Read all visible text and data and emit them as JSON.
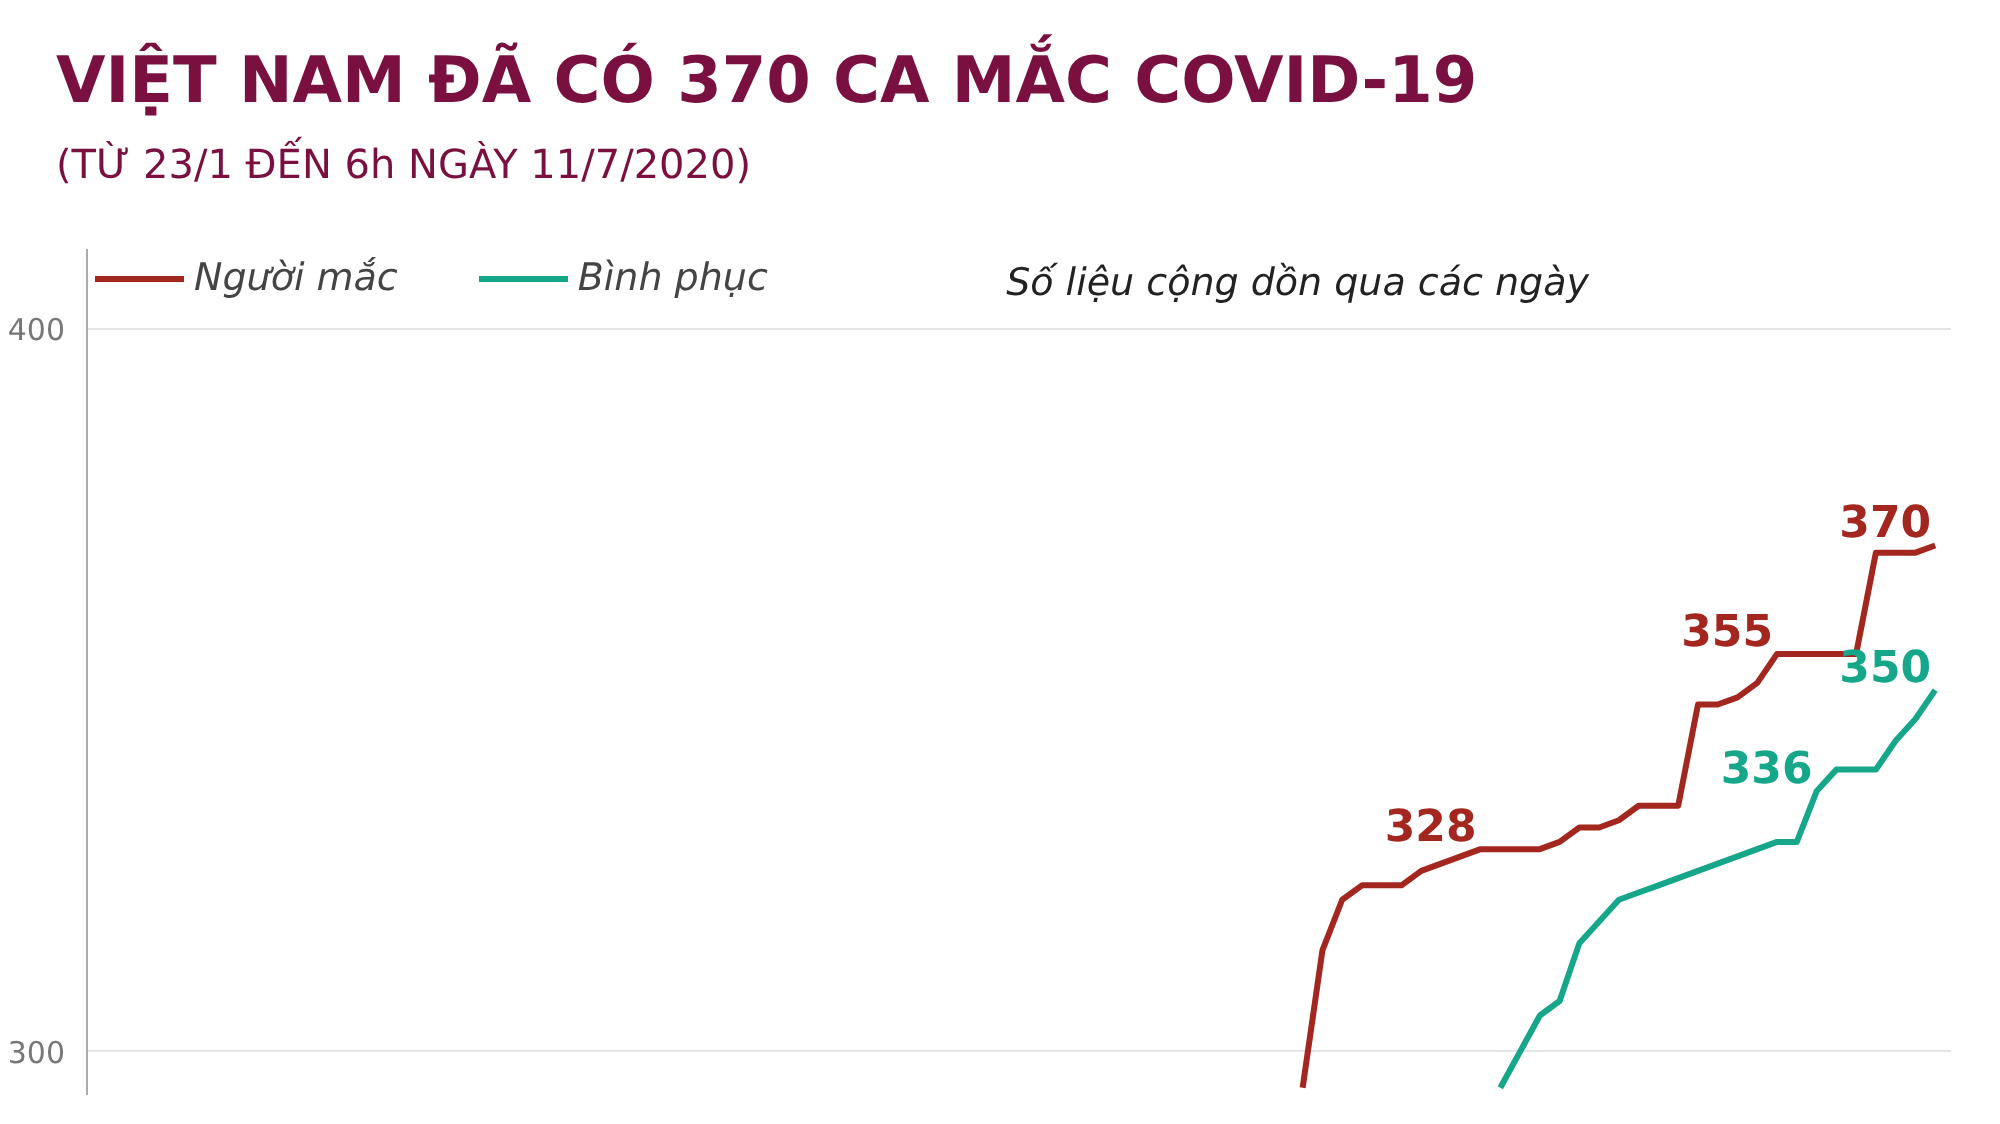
{
  "chart_data": {
    "type": "line",
    "title": "VIỆT NAM ĐÃ CÓ 370 CA MẮC COVID-19",
    "subtitle": "(TỪ 23/1 ĐẾN 6h NGÀY 11/7/2020)",
    "annotations": [
      "Số liệu cộng dồn qua các ngày"
    ],
    "categories": [
      null,
      null,
      null,
      null,
      null,
      null,
      null,
      null,
      null,
      null,
      null,
      null,
      null,
      null,
      null,
      null,
      null,
      null,
      null,
      null,
      null,
      null,
      null,
      null,
      null,
      null,
      null,
      null,
      null,
      null,
      null,
      null,
      null,
      null,
      null,
      null,
      null,
      null,
      null,
      null,
      null,
      null,
      null,
      null,
      null,
      null,
      null,
      null,
      null,
      null,
      null,
      null,
      null,
      null,
      null,
      null,
      null,
      null,
      null,
      null,
      null,
      null,
      null,
      null,
      null,
      null,
      null,
      null,
      null,
      null,
      null,
      null,
      null,
      null,
      null,
      null,
      null,
      null,
      null,
      null,
      null,
      null,
      null,
      null,
      null,
      null,
      null,
      null,
      null,
      null,
      null,
      null,
      null,
      null
    ],
    "series": [
      {
        "name": "Người mắc",
        "color": "#a3271f",
        "values": [
          null,
          null,
          null,
          null,
          null,
          null,
          null,
          null,
          null,
          null,
          null,
          null,
          null,
          null,
          null,
          null,
          null,
          null,
          null,
          null,
          null,
          null,
          null,
          null,
          null,
          null,
          null,
          null,
          null,
          null,
          null,
          null,
          null,
          null,
          null,
          null,
          null,
          null,
          null,
          null,
          null,
          null,
          null,
          null,
          null,
          null,
          null,
          null,
          null,
          null,
          null,
          null,
          null,
          null,
          null,
          null,
          null,
          null,
          null,
          null,
          null,
          295,
          314,
          321,
          323,
          323,
          323,
          325,
          326,
          327,
          328,
          328,
          328,
          328,
          329,
          331,
          331,
          332,
          334,
          334,
          334,
          348,
          348,
          349,
          351,
          355,
          355,
          355,
          355,
          355,
          369,
          369,
          369,
          370
        ],
        "value_labels": [
          null,
          null,
          null,
          null,
          null,
          null,
          null,
          null,
          null,
          null,
          null,
          null,
          null,
          null,
          null,
          null,
          null,
          null,
          null,
          null,
          null,
          null,
          null,
          null,
          null,
          null,
          null,
          null,
          null,
          null,
          null,
          null,
          null,
          null,
          null,
          null,
          null,
          null,
          null,
          null,
          null,
          null,
          null,
          null,
          null,
          null,
          null,
          null,
          null,
          null,
          null,
          null,
          null,
          null,
          null,
          null,
          null,
          null,
          null,
          null,
          null,
          null,
          null,
          null,
          null,
          null,
          null,
          null,
          null,
          null,
          "328",
          null,
          null,
          null,
          null,
          null,
          null,
          null,
          null,
          null,
          null,
          null,
          null,
          null,
          null,
          "355",
          null,
          null,
          null,
          null,
          null,
          null,
          null,
          "370"
        ]
      },
      {
        "name": "Bình phục",
        "color": "#16a68a",
        "values": [
          null,
          null,
          null,
          null,
          null,
          null,
          null,
          null,
          null,
          null,
          null,
          null,
          null,
          null,
          null,
          null,
          null,
          null,
          null,
          null,
          null,
          null,
          null,
          null,
          null,
          null,
          null,
          null,
          null,
          null,
          null,
          null,
          null,
          null,
          null,
          null,
          null,
          null,
          null,
          null,
          null,
          null,
          null,
          null,
          null,
          null,
          null,
          null,
          null,
          null,
          null,
          null,
          null,
          null,
          null,
          null,
          null,
          null,
          null,
          null,
          null,
          null,
          null,
          null,
          null,
          null,
          null,
          null,
          null,
          null,
          null,
          295,
          300,
          305,
          307,
          315,
          318,
          321,
          322,
          323,
          324,
          325,
          326,
          327,
          328,
          329,
          329,
          336,
          339,
          339,
          339,
          343,
          346,
          350
        ],
        "value_labels": [
          null,
          null,
          null,
          null,
          null,
          null,
          null,
          null,
          null,
          null,
          null,
          null,
          null,
          null,
          null,
          null,
          null,
          null,
          null,
          null,
          null,
          null,
          null,
          null,
          null,
          null,
          null,
          null,
          null,
          null,
          null,
          null,
          null,
          null,
          null,
          null,
          null,
          null,
          null,
          null,
          null,
          null,
          null,
          null,
          null,
          null,
          null,
          null,
          null,
          null,
          null,
          null,
          null,
          null,
          null,
          null,
          null,
          null,
          null,
          null,
          null,
          null,
          null,
          null,
          null,
          null,
          null,
          null,
          null,
          null,
          null,
          null,
          null,
          null,
          null,
          null,
          null,
          null,
          null,
          null,
          null,
          null,
          null,
          null,
          null,
          null,
          null,
          "336",
          null,
          null,
          null,
          null,
          null,
          "350"
        ]
      }
    ],
    "ylim": [
      294,
      411
    ],
    "yticks": [
      300,
      400
    ],
    "grid": "y",
    "legend": "top left",
    "tick_labels": "y",
    "line_style": "solid"
  }
}
